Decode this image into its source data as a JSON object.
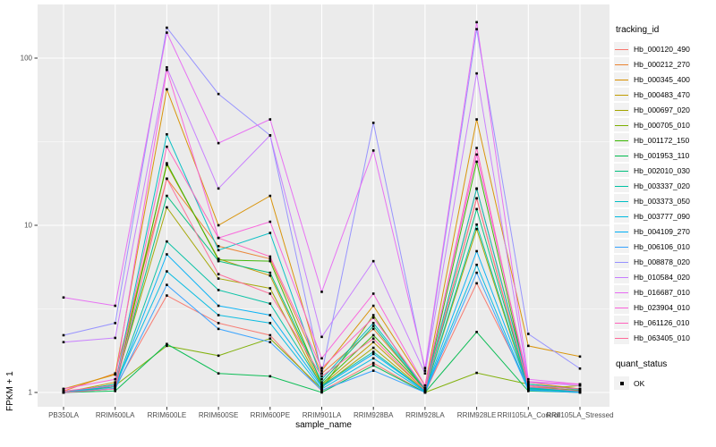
{
  "legend": {
    "tracking_title": "tracking_id",
    "quant_title": "quant_status",
    "quant_items": [
      {
        "label": "OK",
        "marker": "black-square"
      }
    ]
  },
  "chart_data": {
    "type": "line",
    "title": "",
    "xlabel": "sample_name",
    "ylabel": "FPKM + 1",
    "y_scale": "log10",
    "y_ticks": [
      "1",
      "10",
      "100"
    ],
    "y_minor_breaks": [
      3.1623,
      31.623
    ],
    "ylim": [
      1,
      210
    ],
    "grid": "white-on-grey-panel",
    "panel_bg": "#EBEBEB",
    "gridline_color": "#FFFFFF",
    "tick_label_color": "#4D4D4D",
    "point_marker": {
      "shape": "square",
      "color": "#000000",
      "status_label": "OK"
    },
    "legend_position": "right",
    "categories": [
      "PB350LA",
      "RRIM600LA",
      "RRIM600LE",
      "RRIM600SE",
      "RRIM600PE",
      "RRIM901LA",
      "RRIM928BA",
      "RRIM928LA",
      "RRIM928LE",
      "RRII105LA_Control",
      "RRII105LA_Stressed"
    ],
    "series": [
      {
        "name": "Hb_000120_490",
        "color": "#F8766D",
        "values": [
          1.0,
          1.08,
          3.8,
          2.6,
          2.2,
          1.02,
          1.5,
          1.0,
          4.5,
          1.1,
          1.02
        ]
      },
      {
        "name": "Hb_000212_270",
        "color": "#EA8331",
        "values": [
          1.02,
          1.3,
          19,
          7.5,
          6.3,
          1.3,
          2.4,
          1.05,
          16.5,
          1.15,
          1.05
        ]
      },
      {
        "name": "Hb_000345_400",
        "color": "#D89000",
        "values": [
          1.05,
          1.28,
          65,
          10,
          15,
          1.35,
          3.3,
          1.1,
          43,
          1.9,
          1.64
        ]
      },
      {
        "name": "Hb_000483_470",
        "color": "#C09B00",
        "values": [
          1.0,
          1.15,
          23,
          6.3,
          5.0,
          1.1,
          2.0,
          1.03,
          14.5,
          1.05,
          1.02
        ]
      },
      {
        "name": "Hb_000697_020",
        "color": "#A3A500",
        "values": [
          1.0,
          1.12,
          12.8,
          4.8,
          4.2,
          1.08,
          1.85,
          1.02,
          9.5,
          1.04,
          1.1
        ]
      },
      {
        "name": "Hb_000705_010",
        "color": "#7CAE00",
        "values": [
          1.0,
          1.1,
          1.9,
          1.66,
          2.1,
          1.05,
          2.9,
          1.0,
          1.31,
          1.12,
          1.05
        ]
      },
      {
        "name": "Hb_001172_150",
        "color": "#39B600",
        "values": [
          1.0,
          1.05,
          23.5,
          6.2,
          6.1,
          1.12,
          2.2,
          1.05,
          24,
          1.08,
          1.03
        ]
      },
      {
        "name": "Hb_001953_110",
        "color": "#00BB4E",
        "values": [
          1.0,
          1.02,
          1.95,
          1.3,
          1.25,
          1.0,
          1.45,
          1.0,
          2.3,
          1.02,
          1.0
        ]
      },
      {
        "name": "Hb_002010_030",
        "color": "#00BF7D",
        "values": [
          1.0,
          1.1,
          15,
          6.1,
          5.2,
          1.15,
          2.5,
          1.04,
          12.5,
          1.06,
          1.02
        ]
      },
      {
        "name": "Hb_003337_020",
        "color": "#00C1A3",
        "values": [
          1.0,
          1.08,
          8.0,
          4.1,
          3.4,
          1.1,
          1.75,
          1.02,
          10.1,
          1.05,
          1.01
        ]
      },
      {
        "name": "Hb_003373_050",
        "color": "#00BFC4",
        "values": [
          1.0,
          1.12,
          35,
          7.1,
          9.0,
          1.2,
          2.6,
          1.06,
          16.6,
          1.12,
          1.04
        ]
      },
      {
        "name": "Hb_003777_090",
        "color": "#00BAE0",
        "values": [
          1.0,
          1.1,
          5.3,
          2.9,
          2.6,
          1.05,
          1.6,
          1.01,
          5.8,
          1.04,
          1.0
        ]
      },
      {
        "name": "Hb_004109_270",
        "color": "#00B0F6",
        "values": [
          1.0,
          1.06,
          6.7,
          3.3,
          2.9,
          1.08,
          1.7,
          1.02,
          7.0,
          1.07,
          1.02
        ]
      },
      {
        "name": "Hb_006106_010",
        "color": "#35A2FF",
        "values": [
          1.0,
          1.05,
          4.4,
          2.4,
          2.0,
          1.03,
          1.35,
          1.0,
          5.2,
          1.03,
          1.0
        ]
      },
      {
        "name": "Hb_008878_020",
        "color": "#9590FF",
        "values": [
          2.2,
          2.6,
          152,
          61,
          34.5,
          1.3,
          41,
          1.35,
          149,
          2.24,
          1.39
        ]
      },
      {
        "name": "Hb_010584_020",
        "color": "#C77CFF",
        "values": [
          2.0,
          2.12,
          88,
          16.6,
          34.5,
          2.15,
          6.1,
          1.3,
          81,
          1.15,
          1.1
        ]
      },
      {
        "name": "Hb_016687_010",
        "color": "#E76BF3",
        "values": [
          3.7,
          3.3,
          142,
          31,
          43,
          4.0,
          28,
          1.4,
          164,
          1.2,
          1.12
        ]
      },
      {
        "name": "Hb_023904_010",
        "color": "#FA62DB",
        "values": [
          1.05,
          1.2,
          85,
          8.4,
          10.5,
          1.6,
          3.9,
          1.1,
          26.5,
          1.16,
          1.12
        ]
      },
      {
        "name": "Hb_061126_010",
        "color": "#FF62BC",
        "values": [
          1.02,
          1.1,
          29.5,
          8.4,
          6.5,
          1.4,
          2.8,
          1.06,
          29,
          1.1,
          1.05
        ]
      },
      {
        "name": "Hb_063405_010",
        "color": "#FF6A98",
        "values": [
          1.0,
          1.05,
          19,
          5.1,
          3.9,
          1.25,
          2.1,
          1.03,
          14.5,
          1.08,
          1.02
        ]
      }
    ]
  }
}
